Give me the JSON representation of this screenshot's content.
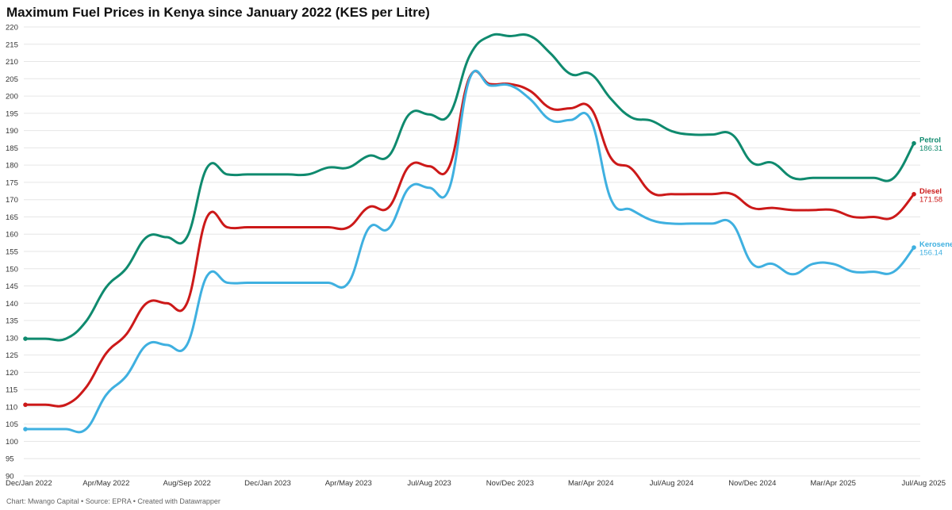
{
  "chart_data": {
    "type": "line",
    "title": "Maximum Fuel Prices in Kenya since January 2022 (KES per Litre)",
    "ylim": [
      90,
      220
    ],
    "y_ticks": [
      90,
      95,
      100,
      105,
      110,
      115,
      120,
      125,
      130,
      135,
      140,
      145,
      150,
      155,
      160,
      165,
      170,
      175,
      180,
      185,
      190,
      195,
      200,
      205,
      210,
      215,
      220
    ],
    "x_tick_labels": [
      "Dec/Jan 2022",
      "Apr/May 2022",
      "Aug/Sep 2022",
      "Dec/Jan 2023",
      "Apr/May 2023",
      "Jul/Aug 2023",
      "Nov/Dec 2023",
      "Mar/Apr 2024",
      "Jul/Aug 2024",
      "Nov/Dec 2024",
      "Mar/Apr 2025",
      "Jul/Aug 2025"
    ],
    "grid": true,
    "legend": "labels at line ends (right)",
    "series": [
      {
        "name": "Petrol",
        "color": "#0f8a6e",
        "end_label": "186.31",
        "values": [
          129.72,
          129.72,
          129.72,
          134.72,
          144.62,
          150.12,
          159.12,
          159.12,
          159.12,
          179.3,
          177.3,
          177.3,
          177.3,
          177.3,
          177.3,
          179.3,
          179.3,
          182.7,
          182.7,
          194.68,
          194.68,
          194.68,
          211.64,
          217.36,
          217.36,
          217.36,
          212.36,
          206.36,
          206.36,
          199.15,
          193.84,
          192.84,
          189.84,
          188.84,
          188.84,
          188.84,
          180.66,
          180.66,
          176.29,
          176.29,
          176.29,
          176.29,
          176.29,
          176.29,
          186.31
        ]
      },
      {
        "name": "Diesel",
        "color": "#cc1919",
        "end_label": "171.58",
        "values": [
          110.6,
          110.6,
          110.6,
          115.6,
          125.5,
          131.0,
          140.0,
          140.0,
          140.0,
          165.0,
          162.0,
          162.0,
          162.0,
          162.0,
          162.0,
          162.0,
          162.0,
          167.81,
          167.81,
          179.67,
          179.67,
          179.67,
          205.47,
          203.47,
          203.47,
          201.47,
          196.47,
          196.47,
          196.47,
          182.04,
          179.04,
          172.04,
          171.6,
          171.6,
          171.6,
          171.6,
          167.6,
          167.6,
          166.98,
          166.98,
          166.98,
          164.98,
          164.98,
          164.98,
          171.58
        ]
      },
      {
        "name": "Kerosene",
        "color": "#3fb0e0",
        "end_label": "156.14",
        "values": [
          103.54,
          103.54,
          103.54,
          103.54,
          113.44,
          118.94,
          127.94,
          127.94,
          127.94,
          147.94,
          145.94,
          145.94,
          145.94,
          145.94,
          145.94,
          145.94,
          145.94,
          161.69,
          161.69,
          173.44,
          173.44,
          173.44,
          205.06,
          203.06,
          203.06,
          199.06,
          193.06,
          193.06,
          193.06,
          170.06,
          167.06,
          164.06,
          163.06,
          163.06,
          163.06,
          163.06,
          151.39,
          151.39,
          148.39,
          151.39,
          151.39,
          149.11,
          149.11,
          149.11,
          156.14
        ]
      }
    ]
  },
  "footer": "Chart: Mwango Capital • Source: EPRA • Created with Datawrapper"
}
